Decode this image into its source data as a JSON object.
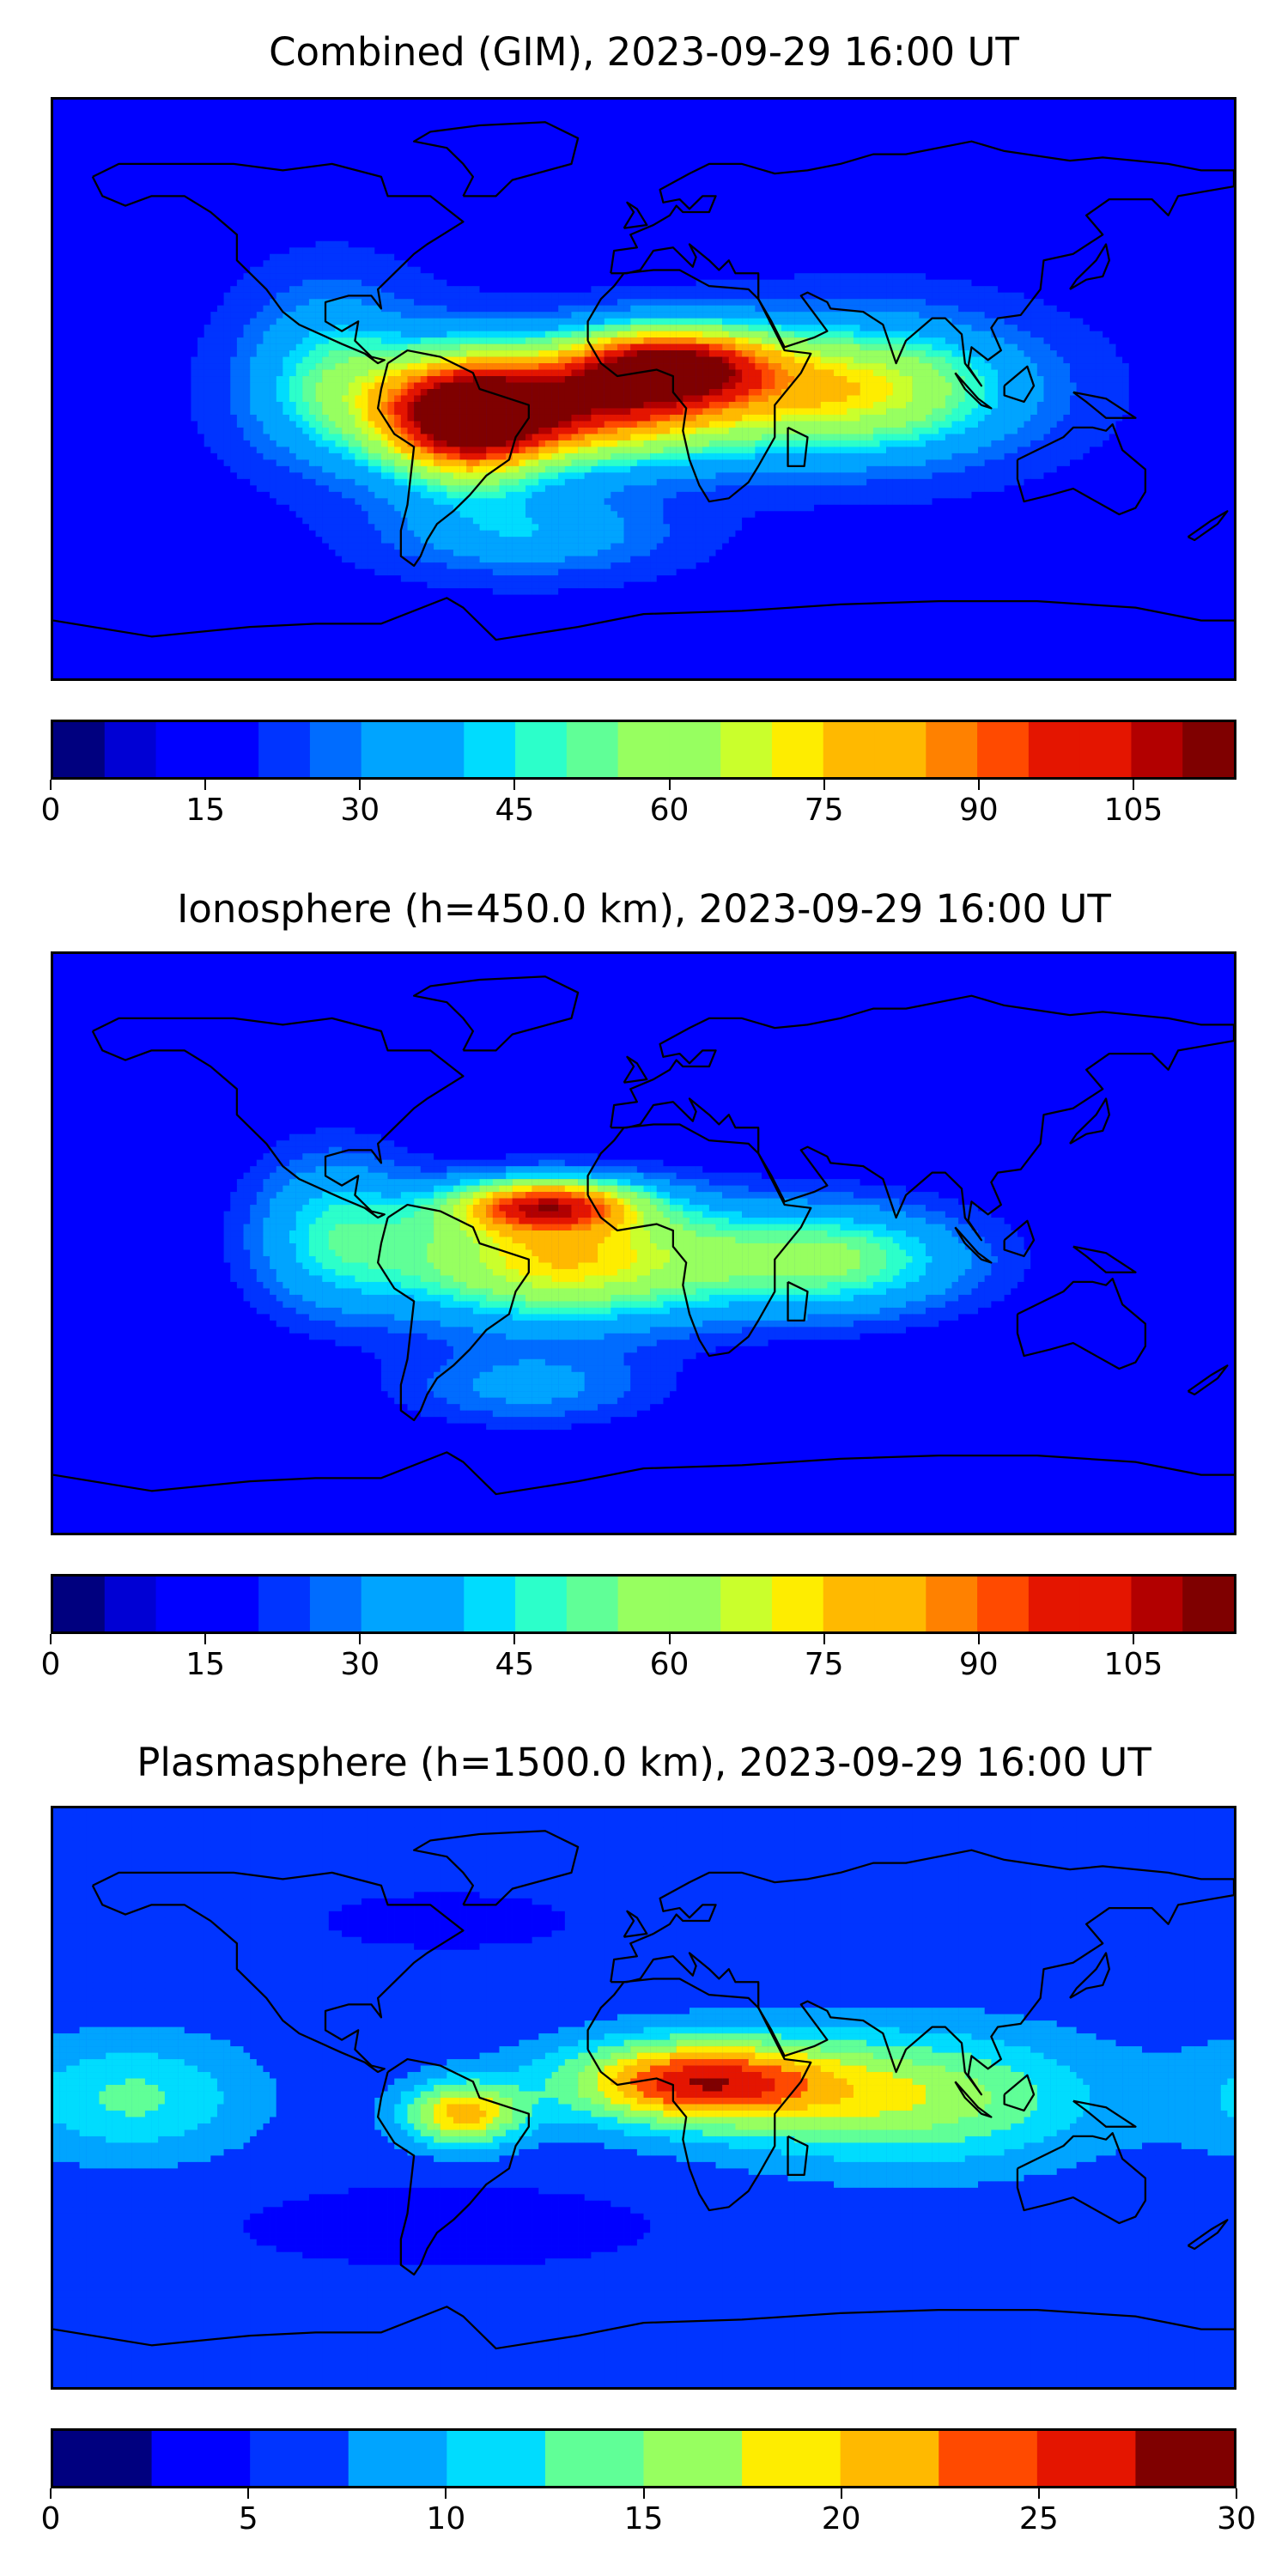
{
  "panels": [
    {
      "id": "combined",
      "title": "Combined (GIM), 2023-09-29 16:00 UT",
      "colorbar": {
        "min": 0,
        "max": 115,
        "step": 5,
        "ticks": [
          "0",
          "15",
          "30",
          "45",
          "60",
          "75",
          "90",
          "105"
        ],
        "tick_values": [
          0,
          15,
          30,
          45,
          60,
          75,
          90,
          105
        ]
      },
      "field": {
        "background": 18,
        "features": [
          {
            "lon": -22,
            "lat": -6,
            "value": 95,
            "rlon": 55,
            "rlat": 17
          },
          {
            "lon": -55,
            "lat": -10,
            "value": 88,
            "rlon": 25,
            "rlat": 20
          },
          {
            "lon": 8,
            "lat": 8,
            "value": 92,
            "rlon": 32,
            "rlat": 12
          },
          {
            "lon": 68,
            "lat": 0,
            "value": 68,
            "rlon": 45,
            "rlat": 20
          },
          {
            "lon": -95,
            "lat": 5,
            "value": 45,
            "rlon": 25,
            "rlat": 25
          },
          {
            "lon": -35,
            "lat": -45,
            "value": 38,
            "rlon": 40,
            "rlat": 12
          }
        ]
      }
    },
    {
      "id": "ionosphere",
      "title": "Ionosphere  (h=450.0 km), 2023-09-29 16:00 UT",
      "colorbar": {
        "min": 0,
        "max": 115,
        "step": 5,
        "ticks": [
          "0",
          "15",
          "30",
          "45",
          "60",
          "75",
          "90",
          "105"
        ],
        "tick_values": [
          0,
          15,
          30,
          45,
          60,
          75,
          90,
          105
        ]
      },
      "field": {
        "background": 14,
        "features": [
          {
            "lon": -25,
            "lat": -5,
            "value": 75,
            "rlon": 55,
            "rlat": 20
          },
          {
            "lon": -30,
            "lat": 12,
            "value": 80,
            "rlon": 28,
            "rlat": 8
          },
          {
            "lon": 60,
            "lat": -5,
            "value": 52,
            "rlon": 42,
            "rlat": 17
          },
          {
            "lon": -95,
            "lat": 5,
            "value": 40,
            "rlon": 25,
            "rlat": 25
          },
          {
            "lon": -35,
            "lat": -45,
            "value": 32,
            "rlon": 40,
            "rlat": 12
          }
        ]
      }
    },
    {
      "id": "plasmasphere",
      "title": "Plasmasphere (h=1500.0 km), 2023-09-29 16:00 UT",
      "colorbar": {
        "min": 0,
        "max": 30,
        "step": 2.5,
        "ticks": [
          "0",
          "5",
          "10",
          "15",
          "20",
          "25",
          "30"
        ],
        "tick_values": [
          0,
          5,
          10,
          15,
          20,
          25,
          30
        ]
      },
      "field": {
        "background": 6,
        "features": [
          {
            "lon": 15,
            "lat": 5,
            "value": 25,
            "rlon": 40,
            "rlat": 13
          },
          {
            "lon": -55,
            "lat": -5,
            "value": 21,
            "rlon": 18,
            "rlat": 10
          },
          {
            "lon": 80,
            "lat": 0,
            "value": 17,
            "rlon": 55,
            "rlat": 20
          },
          {
            "lon": -155,
            "lat": 0,
            "value": 13,
            "rlon": 35,
            "rlat": 18
          },
          {
            "lon": -60,
            "lat": -40,
            "value": 3,
            "rlon": 60,
            "rlat": 12
          },
          {
            "lon": -60,
            "lat": 55,
            "value": 3,
            "rlon": 35,
            "rlat": 8
          }
        ]
      }
    }
  ],
  "colors": {
    "jet_palette": [
      "#00007f",
      "#0000d4",
      "#0000ff",
      "#0034ff",
      "#006cff",
      "#00a4ff",
      "#00dcfe",
      "#2cffca",
      "#60ff97",
      "#97ff60",
      "#caff2c",
      "#feed00",
      "#ffb900",
      "#ff8100",
      "#ff4a00",
      "#e41500",
      "#b20000",
      "#7f0000"
    ],
    "coastline": "#000000"
  }
}
